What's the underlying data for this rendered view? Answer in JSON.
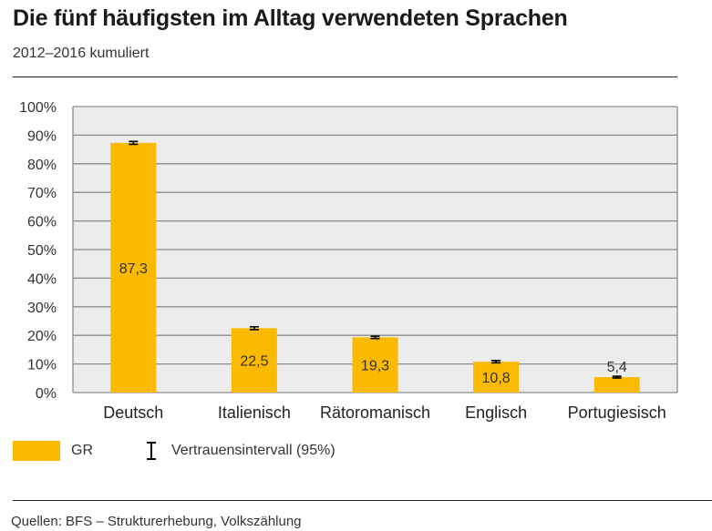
{
  "header": {
    "title": "Die fünf häufigsten im Alltag verwendeten Sprachen",
    "subtitle": "2012–2016 kumuliert"
  },
  "legend": {
    "series_label": "GR",
    "ci_label": "Vertrauensintervall (95%)"
  },
  "footer": {
    "source": "Quellen: BFS – Strukturerhebung, Volkszählung"
  },
  "colors": {
    "bar": "#FBBA00",
    "plot_background": "#ECECEC",
    "gridline": "#8C8C8C",
    "error_bar": "#000000"
  },
  "chart_data": {
    "type": "bar",
    "categories": [
      "Deutsch",
      "Italienisch",
      "Rätoromanisch",
      "Englisch",
      "Portugiesisch"
    ],
    "series": [
      {
        "name": "GR",
        "values": [
          87.3,
          22.5,
          19.3,
          10.8,
          5.4
        ],
        "value_labels": [
          "87,3",
          "22,5",
          "19,3",
          "10,8",
          "5,4"
        ],
        "ci": [
          [
            86.8,
            87.8
          ],
          [
            22.0,
            23.0
          ],
          [
            18.9,
            19.7
          ],
          [
            10.4,
            11.2
          ],
          [
            5.1,
            5.7
          ]
        ]
      }
    ],
    "ylim": [
      0,
      100
    ],
    "yticks": [
      0,
      10,
      20,
      30,
      40,
      50,
      60,
      70,
      80,
      90,
      100
    ],
    "ytick_labels": [
      "0%",
      "10%",
      "20%",
      "30%",
      "40%",
      "50%",
      "60%",
      "70%",
      "80%",
      "90%",
      "100%"
    ],
    "grid": true,
    "xlabel": "",
    "ylabel": ""
  }
}
